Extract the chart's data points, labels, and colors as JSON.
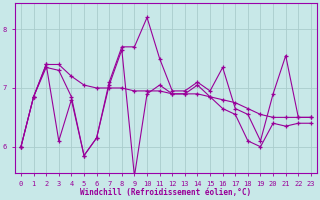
{
  "xlabel": "Windchill (Refroidissement éolien,°C)",
  "background_color": "#c8e8e8",
  "line_color": "#990099",
  "grid_color": "#aacccc",
  "spine_color": "#9900aa",
  "xlim_min": -0.5,
  "xlim_max": 23.5,
  "ylim_min": 5.55,
  "ylim_max": 8.45,
  "xticks": [
    0,
    1,
    2,
    3,
    4,
    5,
    6,
    7,
    8,
    9,
    10,
    11,
    12,
    13,
    14,
    15,
    16,
    17,
    18,
    19,
    20,
    21,
    22,
    23
  ],
  "yticks": [
    6,
    7,
    8
  ],
  "series1": [
    6.0,
    6.85,
    7.4,
    7.4,
    7.2,
    7.05,
    7.0,
    7.0,
    7.0,
    6.95,
    6.95,
    6.95,
    6.9,
    6.9,
    6.9,
    6.85,
    6.8,
    6.75,
    6.65,
    6.55,
    6.5,
    6.5,
    6.5,
    6.5
  ],
  "series2": [
    6.0,
    6.85,
    7.4,
    6.1,
    6.8,
    5.85,
    6.15,
    7.05,
    7.65,
    5.5,
    6.9,
    7.05,
    6.9,
    6.9,
    7.05,
    6.85,
    6.65,
    6.55,
    6.1,
    6.0,
    6.4,
    6.35,
    6.4,
    6.4
  ],
  "series3": [
    6.0,
    6.85,
    7.35,
    7.3,
    6.85,
    5.85,
    6.15,
    7.1,
    7.7,
    7.7,
    8.2,
    7.5,
    6.95,
    6.95,
    7.1,
    6.95,
    7.35,
    6.65,
    6.55,
    6.1,
    6.9,
    7.55,
    6.5,
    6.5
  ]
}
